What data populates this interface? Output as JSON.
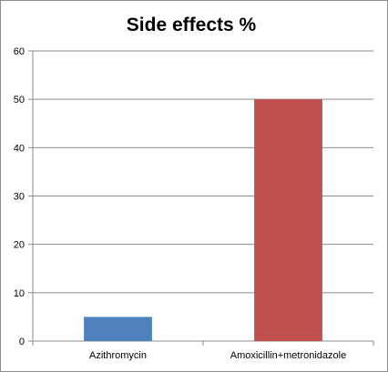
{
  "chart_data": {
    "type": "bar",
    "title": "Side effects %",
    "xlabel": "",
    "ylabel": "",
    "categories": [
      "Azithromycin",
      "Amoxicillin+metronidazole"
    ],
    "values": [
      5,
      50
    ],
    "bar_colors": [
      "#4f81bd",
      "#c0504d"
    ],
    "ylim": [
      0,
      60
    ],
    "yticks": [
      0,
      10,
      20,
      30,
      40,
      50,
      60
    ],
    "grid": true,
    "legend": "none"
  }
}
